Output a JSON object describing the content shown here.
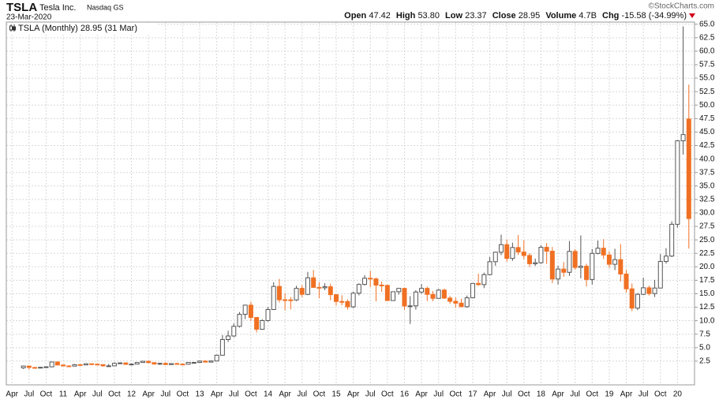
{
  "header": {
    "symbol": "TSLA",
    "company": "Tesla Inc.",
    "exchange": "Nasdaq GS",
    "date": "23-Mar-2020",
    "copyright": "©StockCharts.com",
    "open_label": "Open",
    "open": "47.42",
    "high_label": "High",
    "high": "53.80",
    "low_label": "Low",
    "low": "23.37",
    "close_label": "Close",
    "close": "28.95",
    "volume_label": "Volume",
    "volume": "4.7B",
    "chg_label": "Chg",
    "chg": "-15.58 (-34.99%)"
  },
  "chart_data": {
    "type": "candlestick",
    "legend": "TSLA (Monthly) 28.95 (31 Mar)",
    "x": [
      "2010-06",
      "2010-07",
      "2010-08",
      "2010-09",
      "2010-10",
      "2010-11",
      "2010-12",
      "2011-01",
      "2011-02",
      "2011-03",
      "2011-04",
      "2011-05",
      "2011-06",
      "2011-07",
      "2011-08",
      "2011-09",
      "2011-10",
      "2011-11",
      "2011-12",
      "2012-01",
      "2012-02",
      "2012-03",
      "2012-04",
      "2012-05",
      "2012-06",
      "2012-07",
      "2012-08",
      "2012-09",
      "2012-10",
      "2012-11",
      "2012-12",
      "2013-01",
      "2013-02",
      "2013-03",
      "2013-04",
      "2013-05",
      "2013-06",
      "2013-07",
      "2013-08",
      "2013-09",
      "2013-10",
      "2013-11",
      "2013-12",
      "2014-01",
      "2014-02",
      "2014-03",
      "2014-04",
      "2014-05",
      "2014-06",
      "2014-07",
      "2014-08",
      "2014-09",
      "2014-10",
      "2014-11",
      "2014-12",
      "2015-01",
      "2015-02",
      "2015-03",
      "2015-04",
      "2015-05",
      "2015-06",
      "2015-07",
      "2015-08",
      "2015-09",
      "2015-10",
      "2015-11",
      "2015-12",
      "2016-01",
      "2016-02",
      "2016-03",
      "2016-04",
      "2016-05",
      "2016-06",
      "2016-07",
      "2016-08",
      "2016-09",
      "2016-10",
      "2016-11",
      "2016-12",
      "2017-01",
      "2017-02",
      "2017-03",
      "2017-04",
      "2017-05",
      "2017-06",
      "2017-07",
      "2017-08",
      "2017-09",
      "2017-10",
      "2017-11",
      "2017-12",
      "2018-01",
      "2018-02",
      "2018-03",
      "2018-04",
      "2018-05",
      "2018-06",
      "2018-07",
      "2018-08",
      "2018-09",
      "2018-10",
      "2018-11",
      "2018-12",
      "2019-01",
      "2019-02",
      "2019-03",
      "2019-04",
      "2019-05",
      "2019-06",
      "2019-07",
      "2019-08",
      "2019-09",
      "2019-10",
      "2019-11",
      "2019-12",
      "2020-01",
      "2020-02",
      "2020-03"
    ],
    "open": [
      1.27,
      1.59,
      1.33,
      1.3,
      1.36,
      1.45,
      2.35,
      1.78,
      1.61,
      1.58,
      1.85,
      1.8,
      2.02,
      1.94,
      1.86,
      1.63,
      1.63,
      2.09,
      2.17,
      1.9,
      1.95,
      2.25,
      2.48,
      2.22,
      1.96,
      2.09,
      1.86,
      2.05,
      1.95,
      1.93,
      2.26,
      2.26,
      2.51,
      2.32,
      2.53,
      3.6,
      6.51,
      7.17,
      8.96,
      11.19,
      12.89,
      10.6,
      8.42,
      10.03,
      12.07,
      16.36,
      13.89,
      13.87,
      13.85,
      16.0,
      14.89,
      17.96,
      16.18,
      16.11,
      16.3,
      14.83,
      13.57,
      13.56,
      12.58,
      15.11,
      16.73,
      17.88,
      17.76,
      16.61,
      16.56,
      13.74,
      15.38,
      16.0,
      12.73,
      12.76,
      15.32,
      16.0,
      14.88,
      14.15,
      15.68,
      14.2,
      13.6,
      13.26,
      12.6,
      14.25,
      16.92,
      16.7,
      18.55,
      20.95,
      22.71,
      24.11,
      21.56,
      23.58,
      22.74,
      22.1,
      20.57,
      20.76,
      23.62,
      22.9,
      17.74,
      19.59,
      18.98,
      22.86,
      19.88,
      20.11,
      17.65,
      22.49,
      23.45,
      22.19,
      20.47,
      21.33,
      18.66,
      15.91,
      12.34,
      14.9,
      16.11,
      15.04,
      16.06,
      20.99,
      21.99,
      27.89,
      43.37,
      47.42
    ],
    "high": [
      1.67,
      1.62,
      1.42,
      1.43,
      1.47,
      2.42,
      2.42,
      1.88,
      1.73,
      1.95,
      1.98,
      2.07,
      2.07,
      2.01,
      1.9,
      1.98,
      2.28,
      2.27,
      2.26,
      2.08,
      2.3,
      2.55,
      2.54,
      2.25,
      2.19,
      2.3,
      2.07,
      2.2,
      2.1,
      2.3,
      2.35,
      2.62,
      2.65,
      2.6,
      3.7,
      7.35,
      8.15,
      9.5,
      11.6,
      12.95,
      13.5,
      10.7,
      10.27,
      12.55,
      17.13,
      17.75,
      15.13,
      14.4,
      16.47,
      16.6,
      19.06,
      19.43,
      17.1,
      16.94,
      16.88,
      14.92,
      14.73,
      13.98,
      15.35,
      16.92,
      18.46,
      19.27,
      17.98,
      17.27,
      16.64,
      15.44,
      16.03,
      16.13,
      14.55,
      15.66,
      16.83,
      16.31,
      15.52,
      15.89,
      15.97,
      14.59,
      14.29,
      14.08,
      14.67,
      16.98,
      18.73,
      18.93,
      21.81,
      22.79,
      25.97,
      25.08,
      24.47,
      25.91,
      24.95,
      22.51,
      21.52,
      24.0,
      24.41,
      23.68,
      20.2,
      20.89,
      24.78,
      23.3,
      25.83,
      20.57,
      23.3,
      24.88,
      25.13,
      22.86,
      23.35,
      24.23,
      19.43,
      16.91,
      15.15,
      17.98,
      16.5,
      17.58,
      22.36,
      23.46,
      28.45,
      43.5,
      64.6,
      53.8
    ],
    "low": [
      1.05,
      1.0,
      1.17,
      1.29,
      1.33,
      1.36,
      1.74,
      1.59,
      1.55,
      1.52,
      1.64,
      1.79,
      1.75,
      1.83,
      1.49,
      1.52,
      1.62,
      2.02,
      1.89,
      1.84,
      1.92,
      2.21,
      2.15,
      1.86,
      1.81,
      1.8,
      1.83,
      1.84,
      1.83,
      1.86,
      2.12,
      2.2,
      2.27,
      2.29,
      2.44,
      3.6,
      6.05,
      6.97,
      8.74,
      10.3,
      9.95,
      7.84,
      8.32,
      9.84,
      12.07,
      13.38,
      11.93,
      12.1,
      13.64,
      14.38,
      14.74,
      16.13,
      14.16,
      15.67,
      13.78,
      12.83,
      12.88,
      12.07,
      12.33,
      14.7,
      16.53,
      16.25,
      13.6,
      15.35,
      13.71,
      13.73,
      14.86,
      12.01,
      9.4,
      12.05,
      15.0,
      13.65,
      13.63,
      14.09,
      14.05,
      13.15,
      12.4,
      12.57,
      12.4,
      14.15,
      16.45,
      16.05,
      18.42,
      20.18,
      22.17,
      20.95,
      21.11,
      22.2,
      21.42,
      19.97,
      20.15,
      20.55,
      20.54,
      16.98,
      16.73,
      18.16,
      18.31,
      19.48,
      17.87,
      16.35,
      16.71,
      22.31,
      21.45,
      19.79,
      19.38,
      17.27,
      15.2,
      11.8,
      11.97,
      14.74,
      14.67,
      14.39,
      16.03,
      20.6,
      21.8,
      27.28,
      40.82,
      23.37
    ],
    "close": [
      1.59,
      1.33,
      1.3,
      1.36,
      1.45,
      2.35,
      1.78,
      1.61,
      1.58,
      1.85,
      1.8,
      2.02,
      1.94,
      1.86,
      1.63,
      1.63,
      2.09,
      2.17,
      1.9,
      1.95,
      2.25,
      2.48,
      2.22,
      1.96,
      2.09,
      1.86,
      2.05,
      1.95,
      1.93,
      2.26,
      2.26,
      2.51,
      2.32,
      2.53,
      3.6,
      6.51,
      7.17,
      8.96,
      11.19,
      12.89,
      10.6,
      8.42,
      10.03,
      12.07,
      16.36,
      13.89,
      13.87,
      13.85,
      16.0,
      14.89,
      17.96,
      16.18,
      16.11,
      16.3,
      14.83,
      13.57,
      13.56,
      12.58,
      15.11,
      16.73,
      17.88,
      17.76,
      16.61,
      16.56,
      13.74,
      15.38,
      16.0,
      12.73,
      12.76,
      15.32,
      16.0,
      14.88,
      14.15,
      15.68,
      14.2,
      13.6,
      13.26,
      12.6,
      14.25,
      16.92,
      16.7,
      18.55,
      20.95,
      22.71,
      24.11,
      21.56,
      23.58,
      22.74,
      22.1,
      20.57,
      20.76,
      23.62,
      22.9,
      17.74,
      19.59,
      18.98,
      22.86,
      19.88,
      20.11,
      17.65,
      22.49,
      23.45,
      22.19,
      20.47,
      21.33,
      18.66,
      15.91,
      12.34,
      14.9,
      16.11,
      15.04,
      16.06,
      20.99,
      21.99,
      27.89,
      43.37,
      44.53,
      28.95
    ],
    "up_color": "#555555",
    "down_color": "#f07023",
    "xlim": [
      "2010-03",
      "2020-04"
    ],
    "xticks": [
      {
        "value": "2010-04",
        "label": "Apr"
      },
      {
        "value": "2010-07",
        "label": "Jul"
      },
      {
        "value": "2010-10",
        "label": "Oct"
      },
      {
        "value": "2011-01",
        "label": "11"
      },
      {
        "value": "2011-04",
        "label": "Apr"
      },
      {
        "value": "2011-07",
        "label": "Jul"
      },
      {
        "value": "2011-10",
        "label": "Oct"
      },
      {
        "value": "2012-01",
        "label": "12"
      },
      {
        "value": "2012-04",
        "label": "Apr"
      },
      {
        "value": "2012-07",
        "label": "Jul"
      },
      {
        "value": "2012-10",
        "label": "Oct"
      },
      {
        "value": "2013-01",
        "label": "13"
      },
      {
        "value": "2013-04",
        "label": "Apr"
      },
      {
        "value": "2013-07",
        "label": "Jul"
      },
      {
        "value": "2013-10",
        "label": "Oct"
      },
      {
        "value": "2014-01",
        "label": "14"
      },
      {
        "value": "2014-04",
        "label": "Apr"
      },
      {
        "value": "2014-07",
        "label": "Jul"
      },
      {
        "value": "2014-10",
        "label": "Oct"
      },
      {
        "value": "2015-01",
        "label": "15"
      },
      {
        "value": "2015-04",
        "label": "Apr"
      },
      {
        "value": "2015-07",
        "label": "Jul"
      },
      {
        "value": "2015-10",
        "label": "Oct"
      },
      {
        "value": "2016-01",
        "label": "16"
      },
      {
        "value": "2016-04",
        "label": "Apr"
      },
      {
        "value": "2016-07",
        "label": "Jul"
      },
      {
        "value": "2016-10",
        "label": "Oct"
      },
      {
        "value": "2017-01",
        "label": "17"
      },
      {
        "value": "2017-04",
        "label": "Apr"
      },
      {
        "value": "2017-07",
        "label": "Jul"
      },
      {
        "value": "2017-10",
        "label": "Oct"
      },
      {
        "value": "2018-01",
        "label": "18"
      },
      {
        "value": "2018-04",
        "label": "Apr"
      },
      {
        "value": "2018-07",
        "label": "Jul"
      },
      {
        "value": "2018-10",
        "label": "Oct"
      },
      {
        "value": "2019-01",
        "label": "19"
      },
      {
        "value": "2019-04",
        "label": "Apr"
      },
      {
        "value": "2019-07",
        "label": "Jul"
      },
      {
        "value": "2019-10",
        "label": "Oct"
      },
      {
        "value": "2020-01",
        "label": "20"
      }
    ],
    "ylim": [
      -1.9,
      65.4
    ],
    "yticks": [
      2.5,
      {
        "value": 5,
        "label": "5.0"
      },
      7.5,
      {
        "value": 10,
        "label": "10.0"
      },
      12.5,
      {
        "value": 15,
        "label": "15.0"
      },
      17.5,
      {
        "value": 20,
        "label": "20.0"
      },
      22.5,
      {
        "value": 25,
        "label": "25.0"
      },
      27.5,
      {
        "value": 30,
        "label": "30.0"
      },
      32.5,
      {
        "value": 35,
        "label": "35.0"
      },
      37.5,
      {
        "value": 40,
        "label": "40.0"
      },
      42.5,
      {
        "value": 45,
        "label": "45.0"
      },
      47.5,
      {
        "value": 50,
        "label": "50.0"
      },
      52.5,
      {
        "value": 55,
        "label": "55.0"
      },
      57.5,
      {
        "value": 60,
        "label": "60.0"
      },
      62.5,
      {
        "value": 65,
        "label": "65.0"
      }
    ],
    "grid": true
  }
}
